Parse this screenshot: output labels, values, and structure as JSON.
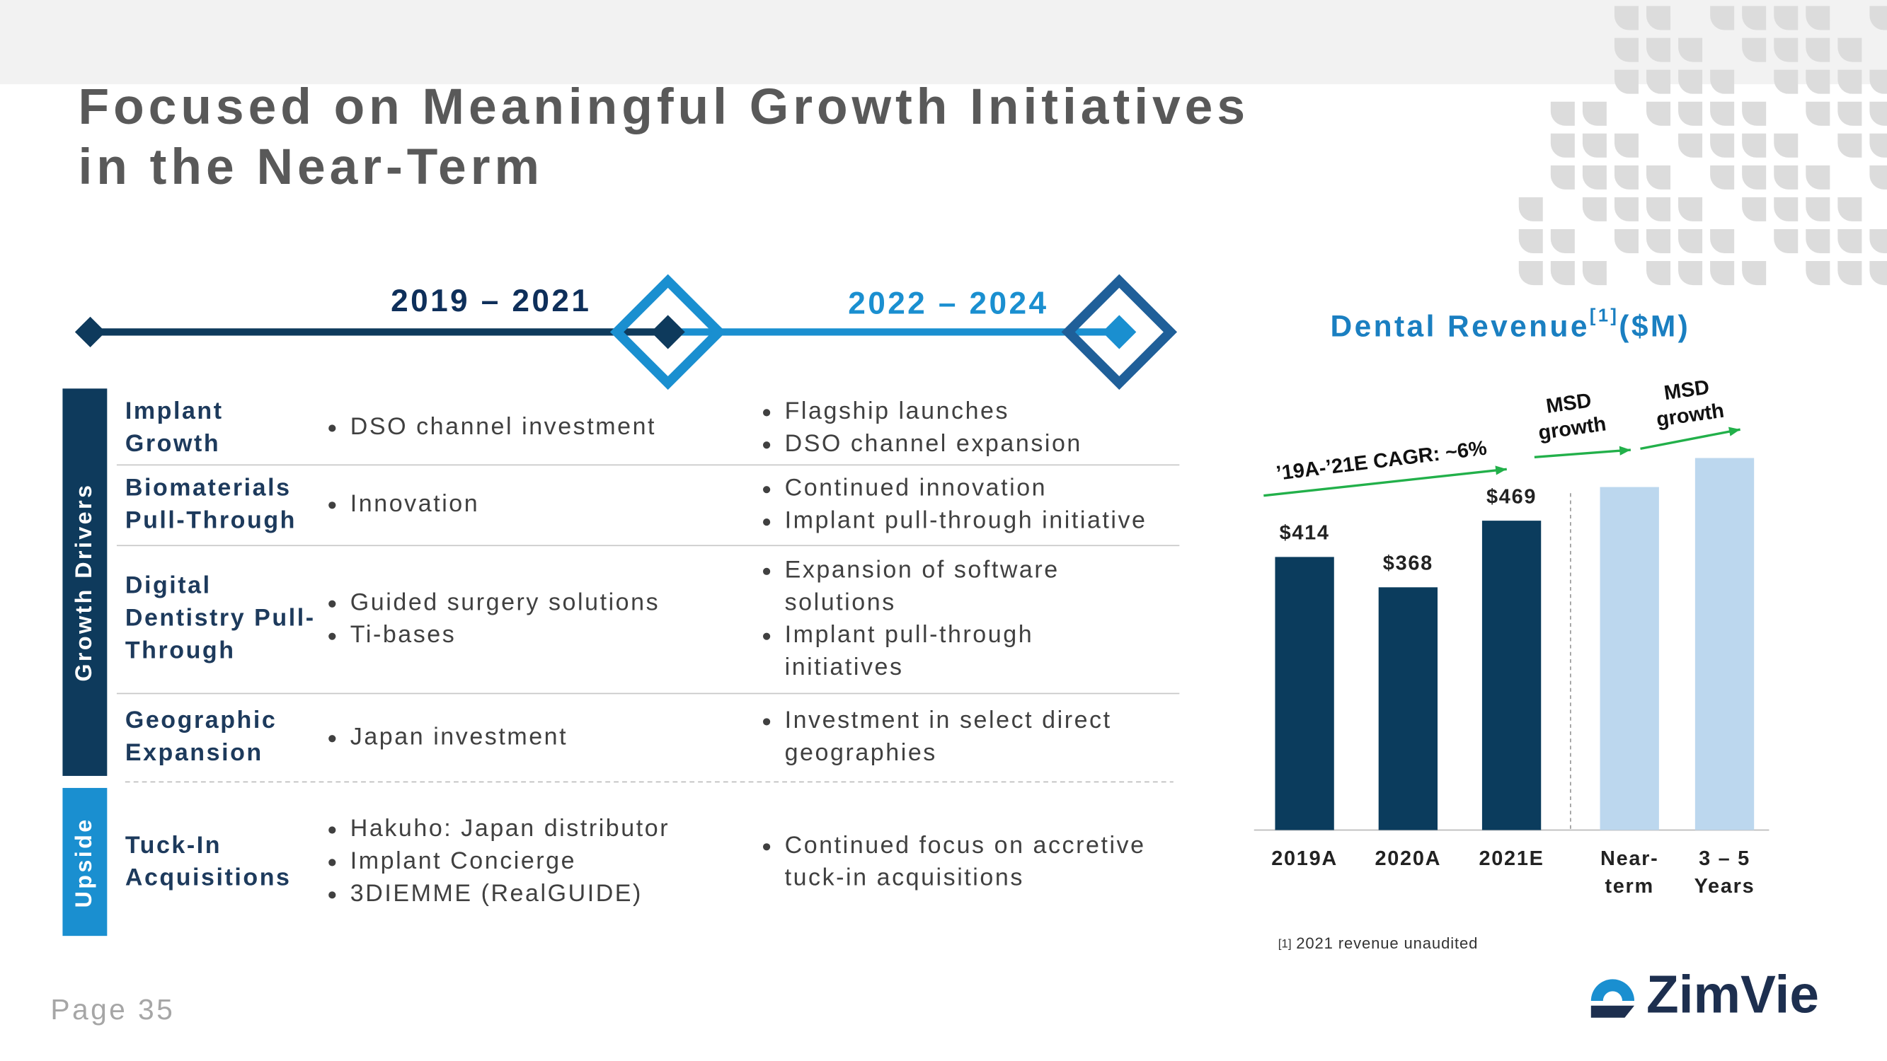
{
  "header": {
    "title": "Focused on Meaningful Growth Initiatives in the Near-Term"
  },
  "timeline": {
    "periods": [
      "2019 – 2021",
      "2022 – 2024"
    ]
  },
  "table": {
    "sections": [
      {
        "name": "Growth Drivers",
        "rows": [
          {
            "label": "Implant Growth",
            "col1": [
              "DSO channel investment"
            ],
            "col2": [
              "Flagship launches",
              "DSO channel expansion"
            ]
          },
          {
            "label": "Biomaterials Pull-Through",
            "col1": [
              "Innovation"
            ],
            "col2": [
              "Continued innovation",
              "Implant pull-through initiative"
            ]
          },
          {
            "label": "Digital Dentistry Pull-Through",
            "col1": [
              "Guided surgery solutions",
              "Ti-bases"
            ],
            "col2": [
              "Expansion of software solutions",
              "Implant pull-through initiatives"
            ]
          },
          {
            "label": "Geographic Expansion",
            "col1": [
              "Japan investment"
            ],
            "col2": [
              "Investment in select direct geographies"
            ]
          }
        ]
      },
      {
        "name": "Upside",
        "rows": [
          {
            "label": "Tuck-In Acquisitions",
            "col1": [
              "Hakuho: Japan distributor",
              "Implant Concierge",
              "3DIEMME (RealGUIDE)"
            ],
            "col2": [
              "Continued focus on accretive tuck-in acquisitions"
            ]
          }
        ]
      }
    ]
  },
  "chart_data": {
    "type": "bar",
    "title": "Dental Revenue",
    "title_note": "[1]",
    "title_unit": "($M)",
    "categories": [
      "2019A",
      "2020A",
      "2021E",
      "Near-term",
      "3 – 5 Years"
    ],
    "values": [
      414,
      368,
      469,
      520,
      564
    ],
    "value_labels": [
      "$414",
      "$368",
      "$469",
      null,
      null
    ],
    "colors": [
      "#0b3c5d",
      "#0b3c5d",
      "#0b3c5d",
      "#bcd7ee",
      "#bcd7ee"
    ],
    "ylim": [
      0,
      600
    ],
    "annotations": [
      "’19A-’21E CAGR: ~6%",
      "MSD growth",
      "MSD growth"
    ],
    "arrow_color": "#22b04a"
  },
  "footnote": {
    "mark": "[1]",
    "text": "2021 revenue unaudited"
  },
  "footer": {
    "page": "Page 35",
    "logo": "ZimVie"
  }
}
